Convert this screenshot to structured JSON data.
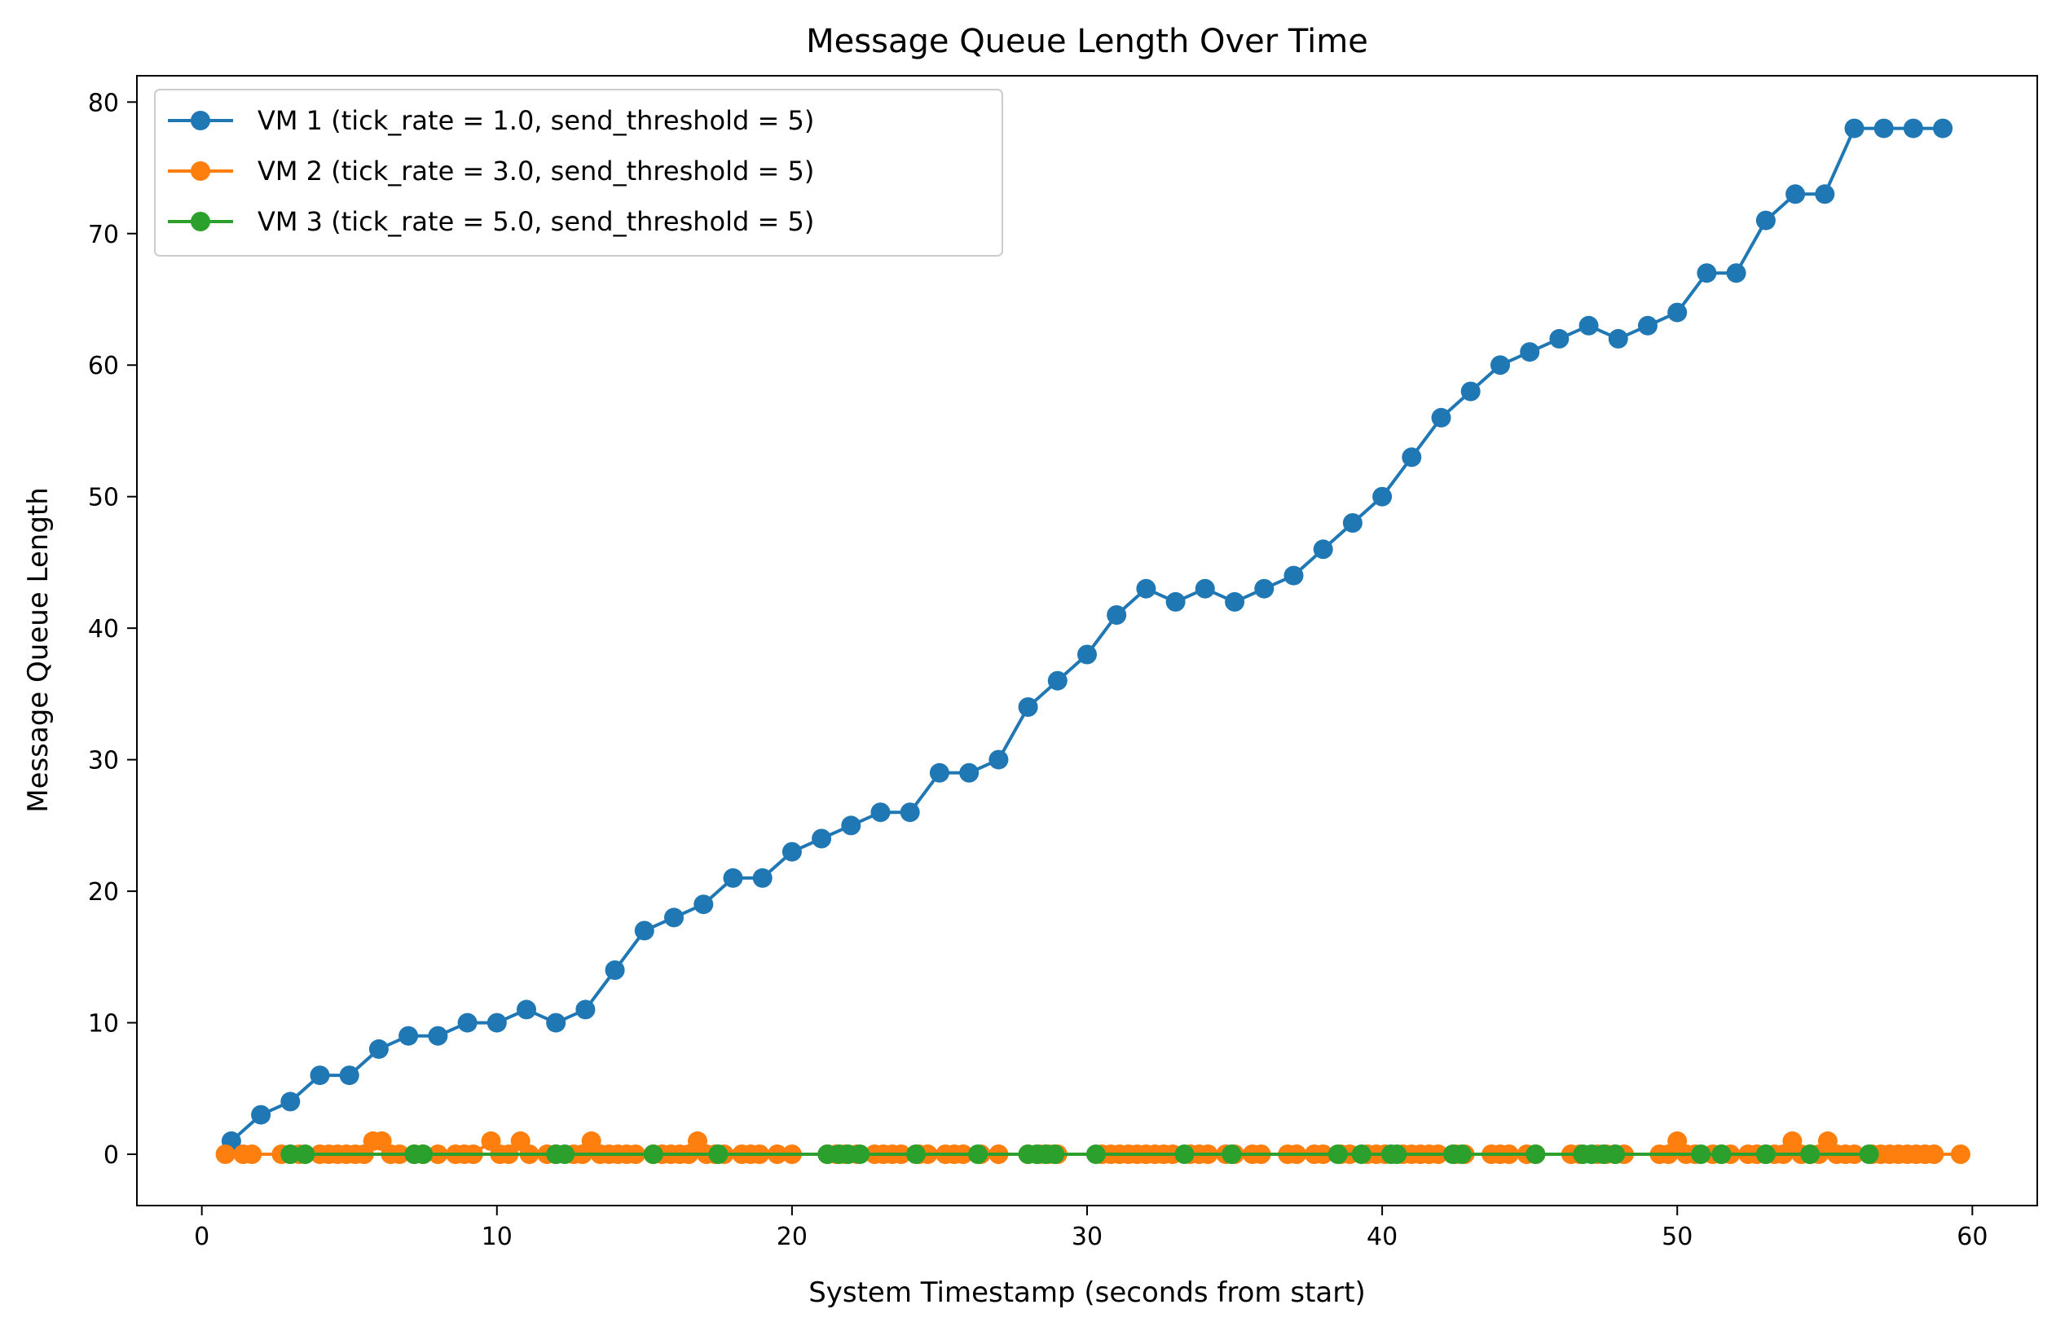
{
  "chart_data": {
    "type": "line",
    "title": "Message Queue Length Over Time",
    "xlabel": "System Timestamp (seconds from start)",
    "ylabel": "Message Queue Length",
    "xlim": [
      -2.2,
      62.2
    ],
    "ylim": [
      -3.9,
      82
    ],
    "xticks": [
      0,
      10,
      20,
      30,
      40,
      50,
      60
    ],
    "yticks": [
      0,
      10,
      20,
      30,
      40,
      50,
      60,
      70,
      80
    ],
    "grid": false,
    "legend_position": "top-left",
    "series": [
      {
        "name": "VM 1 (tick_rate = 1.0, send_threshold = 5)",
        "color": "#1f77b4",
        "x": [
          1,
          2,
          3,
          4,
          5,
          6,
          7,
          8,
          9,
          10,
          11,
          12,
          13,
          14,
          15,
          16,
          17,
          18,
          19,
          20,
          21,
          22,
          23,
          24,
          25,
          26,
          27,
          28,
          29,
          30,
          31,
          32,
          33,
          34,
          35,
          36,
          37,
          38,
          39,
          40,
          41,
          42,
          43,
          44,
          45,
          46,
          47,
          48,
          49,
          50,
          51,
          52,
          53,
          54,
          55,
          56,
          57,
          58,
          59
        ],
        "y": [
          1,
          3,
          4,
          6,
          6,
          8,
          9,
          9,
          10,
          10,
          11,
          10,
          11,
          14,
          17,
          18,
          19,
          21,
          21,
          23,
          24,
          25,
          26,
          26,
          29,
          29,
          30,
          34,
          36,
          38,
          41,
          43,
          42,
          43,
          42,
          43,
          44,
          46,
          48,
          50,
          53,
          56,
          58,
          60,
          61,
          62,
          63,
          62,
          63,
          64,
          67,
          67,
          71,
          73,
          73,
          78,
          78,
          78,
          78
        ]
      },
      {
        "name": "VM 2 (tick_rate = 3.0, send_threshold = 5)",
        "color": "#ff7f0e",
        "x": [
          0.8,
          1.4,
          1.7,
          2.7,
          3.0,
          3.3,
          4.0,
          4.3,
          4.6,
          4.9,
          5.2,
          5.5,
          5.8,
          6.1,
          6.4,
          6.7,
          7.2,
          7.5,
          8.0,
          8.6,
          8.9,
          9.2,
          9.8,
          10.1,
          10.4,
          10.8,
          11.1,
          11.7,
          12.0,
          12.6,
          12.9,
          13.2,
          13.5,
          13.8,
          14.1,
          14.4,
          14.7,
          15.3,
          15.6,
          15.9,
          16.2,
          16.5,
          16.8,
          17.1,
          17.4,
          17.7,
          18.3,
          18.6,
          18.9,
          19.5,
          20.0,
          21.2,
          21.5,
          21.8,
          22.2,
          22.8,
          23.1,
          23.4,
          23.7,
          24.3,
          24.6,
          25.2,
          25.5,
          25.8,
          26.4,
          27.0,
          28.0,
          28.4,
          28.7,
          29.0,
          30.5,
          30.8,
          31.1,
          31.4,
          31.7,
          32.0,
          32.3,
          32.6,
          32.9,
          33.5,
          33.8,
          34.1,
          34.7,
          35.0,
          35.6,
          35.9,
          36.8,
          37.1,
          37.7,
          38.0,
          38.6,
          38.9,
          39.5,
          39.8,
          40.1,
          40.7,
          41.0,
          41.3,
          41.6,
          41.9,
          42.5,
          42.8,
          43.7,
          44.0,
          44.3,
          44.9,
          45.2,
          46.4,
          46.7,
          47.3,
          47.6,
          47.9,
          48.2,
          49.4,
          49.7,
          50.0,
          50.3,
          50.6,
          51.2,
          51.5,
          51.8,
          52.4,
          52.7,
          53.0,
          53.3,
          53.6,
          53.9,
          54.2,
          54.5,
          54.8,
          55.1,
          55.4,
          55.7,
          56.0,
          56.6,
          56.9,
          57.2,
          57.5,
          57.8,
          58.1,
          58.4,
          58.7,
          59.6
        ],
        "y": [
          0,
          0,
          0,
          0,
          0,
          0,
          0,
          0,
          0,
          0,
          0,
          0,
          1,
          1,
          0,
          0,
          0,
          0,
          0,
          0,
          0,
          0,
          1,
          0,
          0,
          1,
          0,
          0,
          0,
          0,
          0,
          1,
          0,
          0,
          0,
          0,
          0,
          0,
          0,
          0,
          0,
          0,
          1,
          0,
          0,
          0,
          0,
          0,
          0,
          0,
          0,
          0,
          0,
          0,
          0,
          0,
          0,
          0,
          0,
          0,
          0,
          0,
          0,
          0,
          0,
          0,
          0,
          0,
          0,
          0,
          0,
          0,
          0,
          0,
          0,
          0,
          0,
          0,
          0,
          0,
          0,
          0,
          0,
          0,
          0,
          0,
          0,
          0,
          0,
          0,
          0,
          0,
          0,
          0,
          0,
          0,
          0,
          0,
          0,
          0,
          0,
          0,
          0,
          0,
          0,
          0,
          0,
          0,
          0,
          0,
          0,
          0,
          0,
          0,
          0,
          1,
          0,
          0,
          0,
          0,
          0,
          0,
          0,
          0,
          0,
          0,
          1,
          0,
          0,
          0,
          1,
          0,
          0,
          0,
          0,
          0,
          0,
          0,
          0,
          0,
          0,
          0,
          0
        ]
      },
      {
        "name": "VM 3 (tick_rate = 5.0, send_threshold = 5)",
        "color": "#2ca02c",
        "x": [
          3.0,
          3.5,
          7.2,
          7.5,
          12.0,
          12.3,
          15.3,
          17.5,
          21.2,
          21.6,
          21.9,
          22.3,
          24.2,
          26.3,
          28.0,
          28.3,
          28.6,
          28.9,
          30.3,
          33.3,
          34.9,
          38.5,
          39.3,
          40.3,
          40.5,
          42.4,
          42.7,
          45.2,
          46.8,
          47.1,
          47.5,
          47.9,
          50.8,
          51.5,
          53.0,
          54.5,
          56.5
        ],
        "y": [
          0,
          0,
          0,
          0,
          0,
          0,
          0,
          0,
          0,
          0,
          0,
          0,
          0,
          0,
          0,
          0,
          0,
          0,
          0,
          0,
          0,
          0,
          0,
          0,
          0,
          0,
          0,
          0,
          0,
          0,
          0,
          0,
          0,
          0,
          0,
          0,
          0
        ]
      }
    ]
  }
}
